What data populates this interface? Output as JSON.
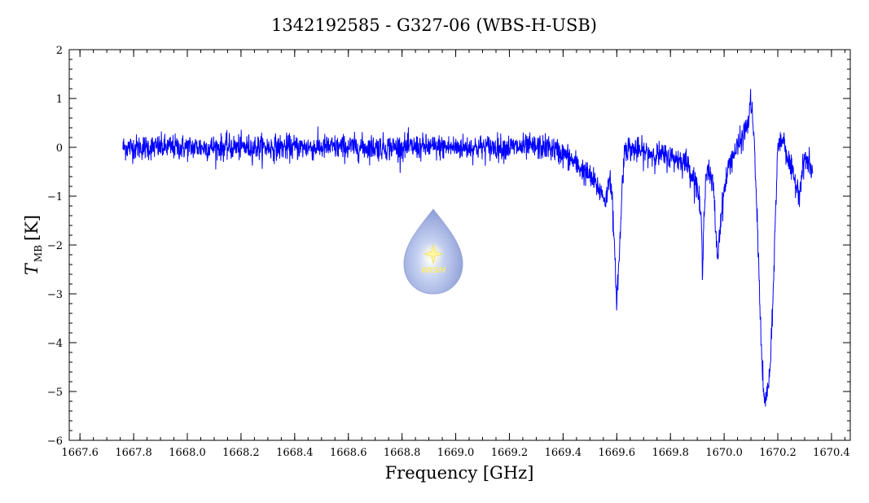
{
  "chart_data": {
    "type": "line",
    "title": "1342192585 - G327-06 (WBS-H-USB)",
    "xlabel": "Frequency [GHz]",
    "ylabel_main": "T",
    "ylabel_sub": "MB",
    "ylabel_unit": "[K]",
    "xlim": [
      1667.56,
      1670.47
    ],
    "ylim": [
      -6,
      2
    ],
    "xticks": [
      1667.6,
      1667.8,
      1668.0,
      1668.2,
      1668.4,
      1668.6,
      1668.8,
      1669.0,
      1669.2,
      1669.4,
      1669.6,
      1669.8,
      1670.0,
      1670.2,
      1670.4
    ],
    "xtick_labels": [
      "1667.6",
      "1667.8",
      "1668.0",
      "1668.2",
      "1668.4",
      "1668.6",
      "1668.8",
      "1669.0",
      "1669.2",
      "1669.4",
      "1669.6",
      "1669.8",
      "1670.0",
      "1670.2",
      "1670.4"
    ],
    "yticks": [
      2,
      1,
      0,
      -1,
      -2,
      -3,
      -4,
      -5,
      -6
    ],
    "ytick_labels": [
      "2",
      "1",
      "0",
      "−1",
      "−2",
      "−3",
      "−4",
      "−5",
      "−6"
    ],
    "grid": false,
    "series": [
      {
        "color": "#0000ff",
        "x_range": [
          1667.76,
          1670.33
        ],
        "noise_rms": 0.13,
        "profile": [
          [
            1667.76,
            0.0
          ],
          [
            1668.0,
            0.0
          ],
          [
            1668.2,
            0.0
          ],
          [
            1668.4,
            0.0
          ],
          [
            1668.6,
            0.0
          ],
          [
            1668.8,
            0.0
          ],
          [
            1669.0,
            0.0
          ],
          [
            1669.2,
            0.0
          ],
          [
            1669.35,
            0.0
          ],
          [
            1669.42,
            -0.2
          ],
          [
            1669.46,
            -0.4
          ],
          [
            1669.5,
            -0.6
          ],
          [
            1669.54,
            -0.9
          ],
          [
            1669.56,
            -1.1
          ],
          [
            1669.575,
            -0.5
          ],
          [
            1669.585,
            -1.3
          ],
          [
            1669.595,
            -2.6
          ],
          [
            1669.6,
            -3.1
          ],
          [
            1669.61,
            -2.2
          ],
          [
            1669.62,
            -0.8
          ],
          [
            1669.63,
            0.0
          ],
          [
            1669.7,
            -0.1
          ],
          [
            1669.8,
            -0.2
          ],
          [
            1669.86,
            -0.3
          ],
          [
            1669.9,
            -0.8
          ],
          [
            1669.915,
            -1.5
          ],
          [
            1669.92,
            -2.8
          ],
          [
            1669.925,
            -1.2
          ],
          [
            1669.935,
            -0.4
          ],
          [
            1669.96,
            -0.8
          ],
          [
            1669.975,
            -2.3
          ],
          [
            1669.985,
            -1.6
          ],
          [
            1670.0,
            -0.9
          ],
          [
            1670.02,
            -0.3
          ],
          [
            1670.06,
            0.1
          ],
          [
            1670.09,
            0.5
          ],
          [
            1670.1,
            1.0
          ],
          [
            1670.11,
            0.3
          ],
          [
            1670.12,
            -1.0
          ],
          [
            1670.13,
            -2.6
          ],
          [
            1670.14,
            -4.3
          ],
          [
            1670.15,
            -5.3
          ],
          [
            1670.16,
            -5.0
          ],
          [
            1670.17,
            -4.7
          ],
          [
            1670.18,
            -3.5
          ],
          [
            1670.19,
            -1.6
          ],
          [
            1670.2,
            0.0
          ],
          [
            1670.22,
            0.2
          ],
          [
            1670.25,
            -0.5
          ],
          [
            1670.28,
            -0.9
          ],
          [
            1670.3,
            -0.2
          ],
          [
            1670.33,
            -0.5
          ]
        ]
      }
    ]
  },
  "watermark": {
    "text": "WISH"
  }
}
